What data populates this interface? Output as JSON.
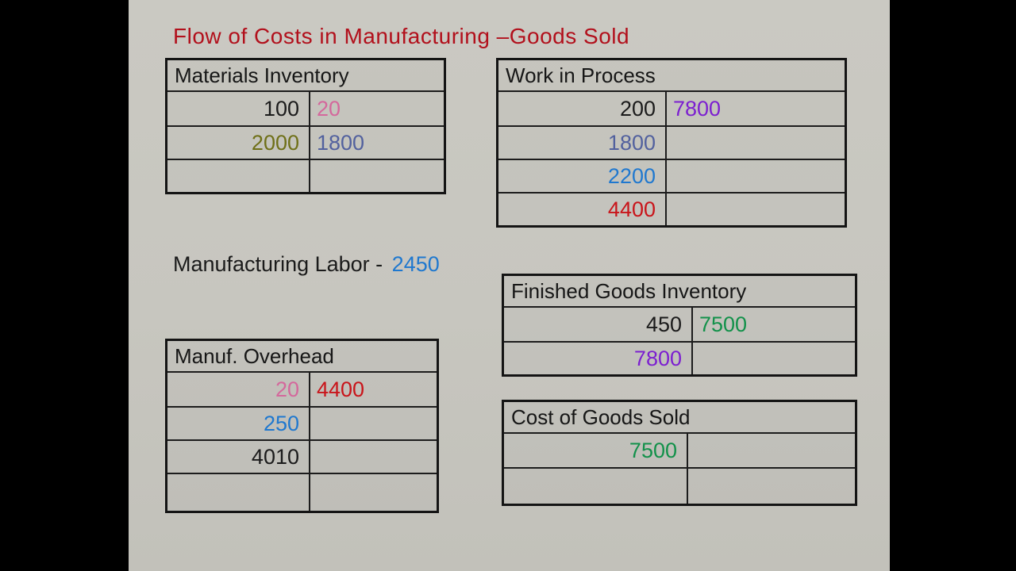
{
  "title": "Flow of Costs in Manufacturing –Goods Sold",
  "labor": {
    "label": "Manufacturing Labor -",
    "amount": "2450"
  },
  "colors": {
    "ink": "#1b1b1b",
    "pink": "#d4689c",
    "olive": "#6f7018",
    "slate": "#52619e",
    "purple": "#7c1fd0",
    "blue": "#1f78cf",
    "red": "#c9141a",
    "green": "#12914a",
    "title_red": "#b2101c",
    "labor_amount_blue": "#1f78cf",
    "slide_bg": "#c7c6bf",
    "letterbox": "#000000",
    "table_border": "#141414"
  },
  "accounts": [
    {
      "title": "Materials Inventory",
      "rows": [
        {
          "debit": {
            "text": "100",
            "color": "ink"
          },
          "credit": {
            "text": "20",
            "color": "pink"
          }
        },
        {
          "debit": {
            "text": "2000",
            "color": "olive"
          },
          "credit": {
            "text": "1800",
            "color": "slate"
          }
        },
        {
          "debit": {
            "text": "",
            "color": "ink"
          },
          "credit": {
            "text": "",
            "color": "ink"
          }
        }
      ]
    },
    {
      "title": "Work in Process",
      "rows": [
        {
          "debit": {
            "text": "200",
            "color": "ink"
          },
          "credit": {
            "text": "7800",
            "color": "purple"
          }
        },
        {
          "debit": {
            "text": "1800",
            "color": "slate"
          },
          "credit": {
            "text": "",
            "color": "ink"
          }
        },
        {
          "debit": {
            "text": "2200",
            "color": "blue"
          },
          "credit": {
            "text": "",
            "color": "ink"
          }
        },
        {
          "debit": {
            "text": "4400",
            "color": "red"
          },
          "credit": {
            "text": "",
            "color": "ink"
          }
        }
      ]
    },
    {
      "title": "Finished Goods Inventory",
      "rows": [
        {
          "debit": {
            "text": "450",
            "color": "ink"
          },
          "credit": {
            "text": "7500",
            "color": "green"
          }
        },
        {
          "debit": {
            "text": "7800",
            "color": "purple"
          },
          "credit": {
            "text": "",
            "color": "ink"
          }
        }
      ]
    },
    {
      "title": "Manuf. Overhead",
      "rows": [
        {
          "debit": {
            "text": "20",
            "color": "pink"
          },
          "credit": {
            "text": "4400",
            "color": "red"
          }
        },
        {
          "debit": {
            "text": "250",
            "color": "blue"
          },
          "credit": {
            "text": "",
            "color": "ink"
          }
        },
        {
          "debit": {
            "text": "4010",
            "color": "ink"
          },
          "credit": {
            "text": "",
            "color": "ink"
          }
        },
        {
          "debit": {
            "text": "",
            "color": "ink"
          },
          "credit": {
            "text": "",
            "color": "ink"
          }
        }
      ]
    },
    {
      "title": "Cost of Goods Sold",
      "rows": [
        {
          "debit": {
            "text": "7500",
            "color": "green"
          },
          "credit": {
            "text": "",
            "color": "ink"
          }
        },
        {
          "debit": {
            "text": "",
            "color": "ink"
          },
          "credit": {
            "text": "",
            "color": "ink"
          }
        }
      ]
    }
  ]
}
